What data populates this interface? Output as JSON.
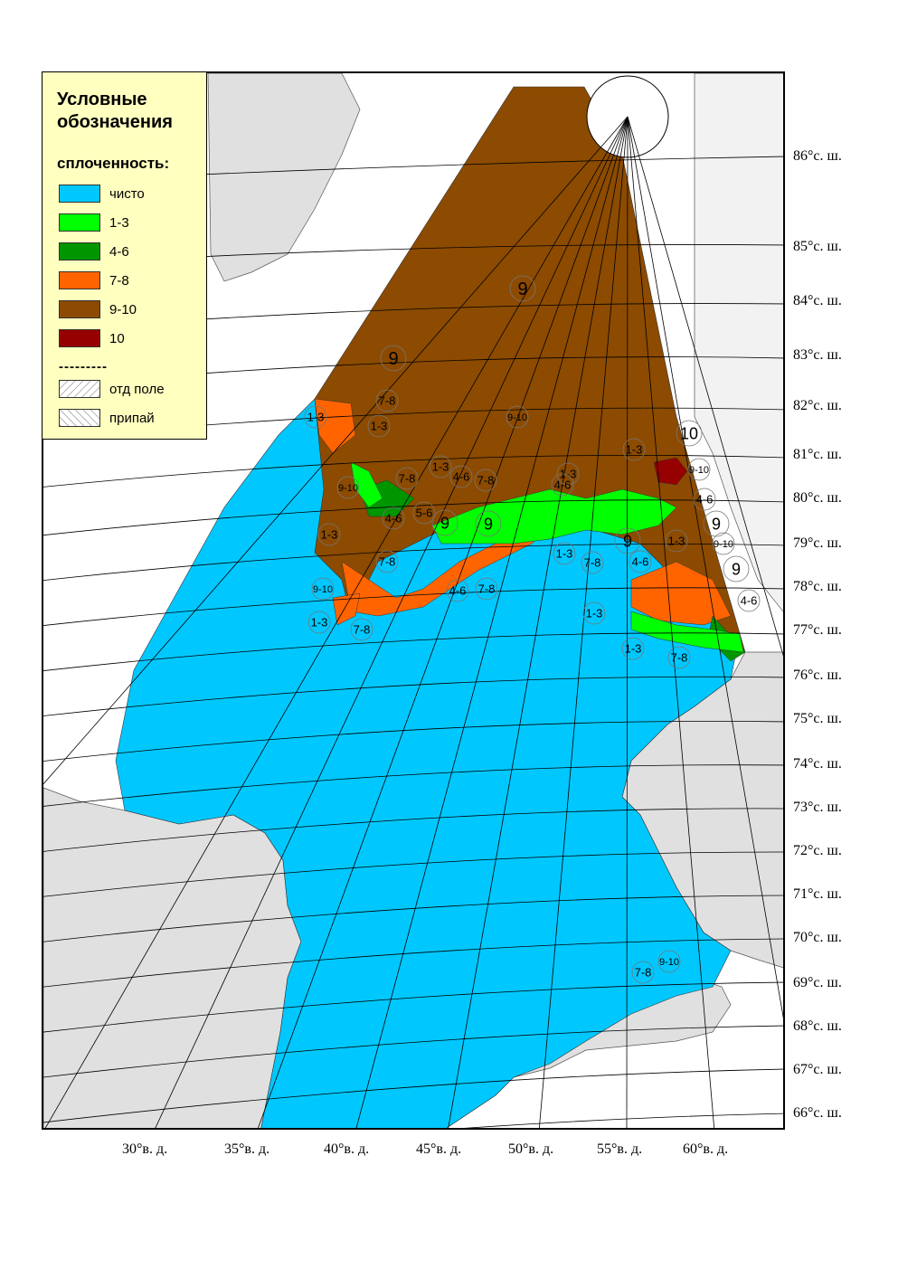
{
  "legend": {
    "title_line1": "Условные",
    "title_line2": "обозначения",
    "subtitle": "сплоченность:",
    "items": [
      {
        "label": "чисто",
        "color": "#00c8ff"
      },
      {
        "label": "1-3",
        "color": "#00ff00"
      },
      {
        "label": "4-6",
        "color": "#009600"
      },
      {
        "label": "7-8",
        "color": "#ff6400"
      },
      {
        "label": "9-10",
        "color": "#8c4b00"
      },
      {
        "label": "10",
        "color": "#960000"
      }
    ],
    "separator": "---------",
    "hatch_items": [
      {
        "label": "отд поле"
      },
      {
        "label": "припай"
      }
    ]
  },
  "latitude_labels": [
    "86°с. ш.",
    "85°с. ш.",
    "84°с. ш.",
    "83°с. ш.",
    "82°с. ш.",
    "81°с. ш.",
    "80°с. ш.",
    "79°с. ш.",
    "78°с. ш.",
    "77°с. ш.",
    "76°с. ш.",
    "75°с. ш.",
    "74°с. ш.",
    "73°с. ш.",
    "72°с. ш.",
    "71°с. ш.",
    "70°с. ш.",
    "69°с. ш.",
    "68°с. ш.",
    "67°с. ш.",
    "66°с. ш."
  ],
  "longitude_labels": [
    "30°в. д.",
    "35°в. д.",
    "40°в. д.",
    "45°в. д.",
    "50°в. д.",
    "55°в. д.",
    "60°в. д."
  ],
  "zone_labels": [
    "9",
    "9",
    "9",
    "9",
    "9",
    "9",
    "9",
    "10",
    "1-3",
    "1-3",
    "1-3",
    "1-3",
    "1-3",
    "1-3",
    "1-3",
    "1-3",
    "1-3",
    "1-3",
    "1-3",
    "4-6",
    "4-6",
    "4-6",
    "4-6",
    "4-6",
    "4-6",
    "4-6",
    "5-6",
    "7-8",
    "7-8",
    "7-8",
    "7-8",
    "7-8",
    "7-8",
    "7-8",
    "7-8",
    "7-8",
    "9-10",
    "9-10",
    "9-10",
    "9-10",
    "9-10",
    "9-10"
  ],
  "colors": {
    "land": "#e0e0e0",
    "sea_clear": "#00c8ff",
    "ice_9_10": "#8c4b00",
    "ice_7_8": "#ff6400",
    "ice_4_6": "#009600",
    "ice_1_3": "#00ff00",
    "ice_10": "#960000",
    "legend_bg": "#ffffc0"
  }
}
